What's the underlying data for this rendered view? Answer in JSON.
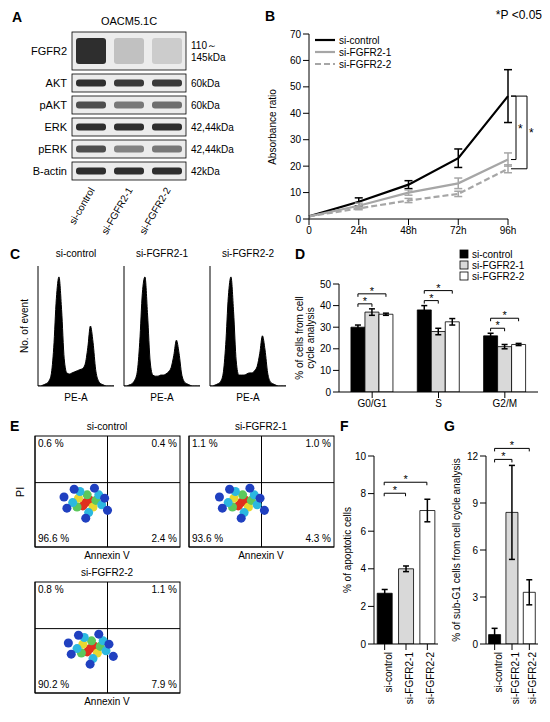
{
  "annotation": "*P <0.05",
  "chart_data": [
    {
      "panel": "A",
      "type": "blot",
      "title": "OACM5.1C",
      "categories": [
        "si-control",
        "si-FGFR2-1",
        "si-FGFR2-2"
      ],
      "rows": [
        {
          "name": "FGFR2",
          "size": [
            "110～",
            "145kDa"
          ],
          "values": [
            0.9,
            0.2,
            0.15
          ]
        },
        {
          "name": "AKT",
          "size": [
            "60kDa"
          ],
          "values": [
            0.9,
            0.85,
            0.85
          ]
        },
        {
          "name": "pAKT",
          "size": [
            "60kDa"
          ],
          "values": [
            0.75,
            0.55,
            0.6
          ]
        },
        {
          "name": "ERK",
          "size": [
            "42,44kDa"
          ],
          "values": [
            0.9,
            0.9,
            0.9
          ]
        },
        {
          "name": "pERK",
          "size": [
            "42,44kDa"
          ],
          "values": [
            0.75,
            0.5,
            0.55
          ]
        },
        {
          "name": "B-actin",
          "size": [
            "42kDa"
          ],
          "values": [
            0.9,
            0.9,
            0.9
          ]
        }
      ]
    },
    {
      "panel": "B",
      "type": "line",
      "categories": [
        "0",
        "24h",
        "48h",
        "72h",
        "96h"
      ],
      "y_label": "Absorbance ratio",
      "ylim": [
        0,
        70
      ],
      "yticks": [
        0,
        10,
        20,
        30,
        40,
        50,
        60,
        70
      ],
      "legend": "upper left",
      "series": [
        {
          "name": "si-control",
          "color": "#000000",
          "line_style": "solid",
          "values": [
            1,
            6.5,
            13,
            23,
            46.5
          ],
          "errors": [
            0,
            1.5,
            1.5,
            3.5,
            10
          ]
        },
        {
          "name": "si-FGFR2-1",
          "color": "#a6a6a6",
          "line_style": "solid",
          "values": [
            1,
            5,
            10,
            13.5,
            22.5
          ],
          "errors": [
            0,
            1,
            1,
            2,
            2.5
          ]
        },
        {
          "name": "si-FGFR2-2",
          "color": "#a6a6a6",
          "line_style": "dashed",
          "values": [
            1,
            4,
            7,
            9.5,
            19
          ],
          "errors": [
            0,
            0.5,
            0.8,
            1,
            1.5
          ]
        }
      ],
      "annotations": [
        {
          "text": "*",
          "between": [
            "si-control",
            "si-FGFR2-1"
          ],
          "category": "96h"
        },
        {
          "text": "*",
          "between": [
            "si-control",
            "si-FGFR2-2"
          ],
          "category": "96h"
        }
      ]
    },
    {
      "panel": "C",
      "type": "area",
      "y_label": "No. of event",
      "x_label": "PE-A",
      "tick_labels": false,
      "color": "#000000",
      "xlim": [
        0,
        29
      ],
      "ylim": [
        0,
        110
      ],
      "x": [
        0,
        1,
        2,
        3,
        4,
        5,
        6,
        7,
        8,
        9,
        10,
        11,
        12,
        13,
        14,
        15,
        16,
        17,
        18,
        19,
        20,
        21,
        22,
        23,
        24,
        25,
        26,
        27,
        28,
        29
      ],
      "subplots": [
        {
          "title": "si-control",
          "values": [
            0,
            0,
            1,
            2,
            4,
            10,
            35,
            80,
            100,
            70,
            25,
            12,
            11,
            12,
            13,
            14,
            15,
            16,
            20,
            35,
            55,
            40,
            15,
            5,
            2,
            1,
            0,
            0,
            0,
            0
          ]
        },
        {
          "title": "si-FGFR2-1",
          "values": [
            0,
            0,
            1,
            2,
            5,
            12,
            40,
            85,
            100,
            65,
            22,
            10,
            9,
            9,
            10,
            10,
            11,
            13,
            17,
            28,
            42,
            30,
            11,
            4,
            2,
            1,
            0,
            0,
            0,
            0
          ]
        },
        {
          "title": "si-FGFR2-2",
          "values": [
            0,
            0,
            1,
            2,
            4,
            11,
            38,
            82,
            100,
            68,
            23,
            10,
            10,
            10,
            11,
            12,
            12,
            14,
            18,
            30,
            46,
            33,
            12,
            4,
            2,
            1,
            0,
            0,
            0,
            0
          ]
        }
      ]
    },
    {
      "panel": "D",
      "type": "bar",
      "categories": [
        "G0/G1",
        "S",
        "G2/M"
      ],
      "y_label": "% of cells from cell cycle analysis",
      "ylim": [
        0,
        50
      ],
      "yticks": [
        0,
        10,
        20,
        30,
        40,
        50
      ],
      "legend": "upper right",
      "series": [
        {
          "name": "si-control",
          "color": "#000000",
          "values": [
            30,
            38,
            26
          ],
          "errors": [
            1,
            2,
            1.2
          ]
        },
        {
          "name": "si-FGFR2-1",
          "color": "#d9d9d9",
          "values": [
            37,
            28,
            21
          ],
          "errors": [
            1.5,
            1.5,
            1
          ]
        },
        {
          "name": "si-FGFR2-2",
          "color": "#ffffff",
          "values": [
            36,
            32.5,
            22
          ],
          "errors": [
            0.5,
            1.5,
            0.5
          ]
        }
      ],
      "annotations": [
        {
          "text": "*",
          "between": [
            "si-control",
            "si-FGFR2-1"
          ],
          "category": "G0/G1"
        },
        {
          "text": "*",
          "between": [
            "si-control",
            "si-FGFR2-2"
          ],
          "category": "G0/G1"
        },
        {
          "text": "*",
          "between": [
            "si-control",
            "si-FGFR2-1"
          ],
          "category": "S"
        },
        {
          "text": "*",
          "between": [
            "si-control",
            "si-FGFR2-2"
          ],
          "category": "S"
        },
        {
          "text": "*",
          "between": [
            "si-control",
            "si-FGFR2-1"
          ],
          "category": "G2/M"
        },
        {
          "text": "*",
          "between": [
            "si-control",
            "si-FGFR2-2"
          ],
          "category": "G2/M"
        }
      ]
    },
    {
      "panel": "E",
      "type": "scatter",
      "x_label": "Annexin V",
      "y_label": "PI",
      "tick_labels": false,
      "xlim": [
        0,
        100
      ],
      "ylim": [
        0,
        100
      ],
      "x_gate": 50,
      "y_gate": 58,
      "subplots": [
        {
          "title": "si-control",
          "x": [
            35,
            38,
            33,
            30,
            40,
            36,
            42,
            29,
            26,
            44,
            37,
            31,
            46,
            22,
            48,
            35,
            27,
            41,
            50,
            20
          ],
          "y": [
            40,
            42,
            37,
            44,
            36,
            47,
            42,
            36,
            40,
            47,
            31,
            50,
            38,
            35,
            44,
            26,
            52,
            53,
            33,
            45
          ],
          "colors": [
            "#e0301e",
            "#e0301e",
            "#e0301e",
            "#e8d830",
            "#e8d830",
            "#5cc85c",
            "#5cc85c",
            "#5cc85c",
            "#2cb8e0",
            "#2cb8e0",
            "#2cb8e0",
            "#2cb8e0",
            "#2cb8e0",
            "#2040c0",
            "#2040c0",
            "#2040c0",
            "#2040c0",
            "#2040c0",
            "#2040c0",
            "#2040c0"
          ],
          "quadrant_labels": {
            "upper_left": "0.6 %",
            "upper_right": "0.4 %",
            "lower_left": "96.6 %",
            "lower_right": "2.4 %"
          }
        },
        {
          "title": "si-FGFR2-1",
          "x": [
            36,
            39,
            34,
            31,
            41,
            37,
            43,
            30,
            27,
            45,
            38,
            32,
            47,
            23,
            49,
            36,
            28,
            42,
            52,
            21
          ],
          "y": [
            40,
            42,
            37,
            44,
            36,
            47,
            42,
            36,
            40,
            47,
            31,
            50,
            38,
            35,
            44,
            26,
            52,
            53,
            33,
            45
          ],
          "colors": [
            "#e0301e",
            "#e0301e",
            "#e0301e",
            "#e8d830",
            "#e8d830",
            "#5cc85c",
            "#5cc85c",
            "#5cc85c",
            "#2cb8e0",
            "#2cb8e0",
            "#2cb8e0",
            "#2cb8e0",
            "#2cb8e0",
            "#2040c0",
            "#2040c0",
            "#2040c0",
            "#2040c0",
            "#2040c0",
            "#2040c0",
            "#2040c0"
          ],
          "quadrant_labels": {
            "upper_left": "1.1 %",
            "upper_right": "1.0 %",
            "lower_left": "93.6 %",
            "lower_right": "4.3 %"
          }
        },
        {
          "title": "si-FGFR2-2",
          "x": [
            38,
            41,
            36,
            33,
            43,
            39,
            45,
            32,
            29,
            47,
            40,
            34,
            49,
            25,
            51,
            38,
            30,
            44,
            54,
            23
          ],
          "y": [
            40,
            42,
            37,
            44,
            36,
            47,
            42,
            36,
            40,
            47,
            31,
            50,
            38,
            35,
            44,
            26,
            52,
            53,
            33,
            45
          ],
          "colors": [
            "#e0301e",
            "#e0301e",
            "#e0301e",
            "#e8d830",
            "#e8d830",
            "#5cc85c",
            "#5cc85c",
            "#5cc85c",
            "#2cb8e0",
            "#2cb8e0",
            "#2cb8e0",
            "#2cb8e0",
            "#2cb8e0",
            "#2040c0",
            "#2040c0",
            "#2040c0",
            "#2040c0",
            "#2040c0",
            "#2040c0",
            "#2040c0"
          ],
          "quadrant_labels": {
            "upper_left": "0.8 %",
            "upper_right": "1.1 %",
            "lower_left": "90.2 %",
            "lower_right": "7.9 %"
          }
        }
      ]
    },
    {
      "panel": "F",
      "type": "bar",
      "categories": [
        "si-control",
        "si-FGFR2-1",
        "si-FGFR2-2"
      ],
      "y_label": "% of apoptotic cells",
      "ylim": [
        0,
        10
      ],
      "yticks": [
        0,
        2,
        4,
        6,
        8,
        10
      ],
      "values": [
        2.7,
        4.0,
        7.1
      ],
      "errors": [
        0.2,
        0.15,
        0.6
      ],
      "colors": [
        "#000000",
        "#d9d9d9",
        "#ffffff"
      ],
      "annotations": [
        {
          "text": "*",
          "between": [
            "si-control",
            "si-FGFR2-1"
          ]
        },
        {
          "text": "*",
          "between": [
            "si-control",
            "si-FGFR2-2"
          ]
        }
      ]
    },
    {
      "panel": "G",
      "type": "bar",
      "categories": [
        "si-control",
        "si-FGFR2-1",
        "si-FGFR2-2"
      ],
      "y_label": "% of sub-G1 cells from cell cycle analysis",
      "ylim": [
        0,
        12
      ],
      "yticks": [
        0,
        3,
        6,
        9,
        12
      ],
      "values": [
        0.6,
        8.4,
        3.3
      ],
      "errors": [
        0.4,
        3.0,
        0.8
      ],
      "colors": [
        "#000000",
        "#d9d9d9",
        "#ffffff"
      ],
      "annotations": [
        {
          "text": "*",
          "between": [
            "si-control",
            "si-FGFR2-1"
          ]
        },
        {
          "text": "*",
          "between": [
            "si-control",
            "si-FGFR2-2"
          ]
        }
      ]
    }
  ]
}
